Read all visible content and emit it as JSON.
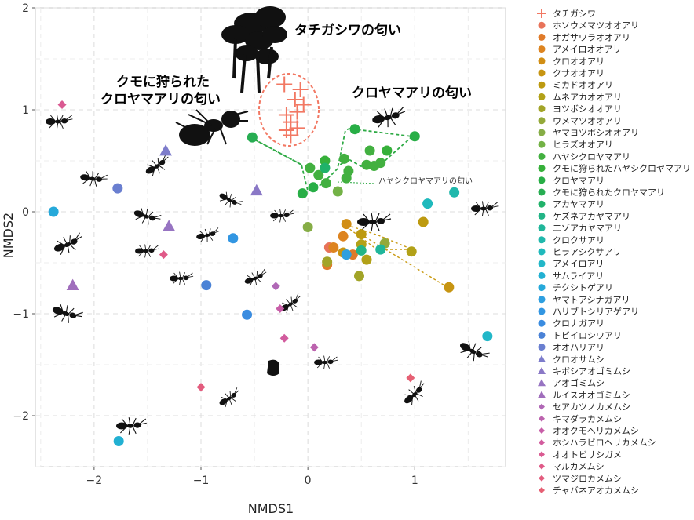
{
  "chart_data": {
    "type": "scatter",
    "xlabel": "NMDS1",
    "ylabel": "NMDS2",
    "xlim": [
      -2.55,
      1.85
    ],
    "ylim": [
      -2.5,
      2.0
    ],
    "xticks": [
      -2,
      -1,
      0,
      1
    ],
    "yticks": [
      -2,
      -1,
      0,
      1,
      2
    ],
    "grid": true,
    "legend_position": "right",
    "annotations": [
      {
        "text": "タチガシワの匂い"
      },
      {
        "text": "クモに狩られた"
      },
      {
        "text": "クロヤマアリの匂い"
      },
      {
        "text": "クロヤマアリの匂い"
      },
      {
        "text": "ハヤシクロヤマアリの匂い"
      }
    ],
    "series": [
      {
        "name": "タチガシワ",
        "color": "#F27863",
        "marker": "plus",
        "points": [
          [
            -0.22,
            1.25
          ],
          [
            -0.07,
            1.2
          ],
          [
            -0.12,
            1.1
          ],
          [
            -0.04,
            1.05
          ],
          [
            -0.1,
            0.98
          ],
          [
            -0.2,
            0.95
          ],
          [
            -0.16,
            0.88
          ],
          [
            -0.1,
            0.82
          ],
          [
            -0.2,
            0.8
          ],
          [
            -0.16,
            0.75
          ]
        ]
      },
      {
        "name": "ホソウメマツオオアリ",
        "color": "#E8735A",
        "marker": "circle",
        "points": [
          [
            0.2,
            -0.35
          ]
        ]
      },
      {
        "name": "オガサワラオオアリ",
        "color": "#E07B2A",
        "marker": "circle",
        "points": [
          [
            0.18,
            -0.52
          ],
          [
            0.42,
            -0.42
          ]
        ]
      },
      {
        "name": "アメイロオオアリ",
        "color": "#DD8420",
        "marker": "circle",
        "points": [
          [
            0.24,
            -0.35
          ],
          [
            0.33,
            -0.24
          ]
        ]
      },
      {
        "name": "クロオオアリ",
        "color": "#D18E14",
        "marker": "circle",
        "points": [
          [
            0.36,
            -0.12
          ]
        ]
      },
      {
        "name": "クサオオアリ",
        "color": "#C79512",
        "marker": "circle",
        "points": [
          [
            0.33,
            -0.4
          ],
          [
            1.32,
            -0.74
          ]
        ]
      },
      {
        "name": "ミカドオオアリ",
        "color": "#BD9A10",
        "marker": "circle",
        "points": [
          [
            0.5,
            -0.22
          ],
          [
            1.08,
            -0.1
          ]
        ]
      },
      {
        "name": "ムネアカオオアリ",
        "color": "#B2A118",
        "marker": "circle",
        "points": [
          [
            0.5,
            -0.32
          ],
          [
            0.97,
            -0.39
          ],
          [
            0.55,
            -0.47
          ]
        ]
      },
      {
        "name": "ヨツボシオオアリ",
        "color": "#A2A428",
        "marker": "circle",
        "points": [
          [
            0.18,
            -0.49
          ],
          [
            0.48,
            -0.63
          ]
        ]
      },
      {
        "name": "ウメマツオオアリ",
        "color": "#94A93A",
        "marker": "circle",
        "points": [
          [
            0.72,
            -0.31
          ]
        ]
      },
      {
        "name": "ヤマヨツボシオオアリ",
        "color": "#86AD46",
        "marker": "circle",
        "points": [
          [
            0.0,
            -0.15
          ]
        ]
      },
      {
        "name": "ヒラズオオアリ",
        "color": "#73B246",
        "marker": "circle",
        "points": [
          [
            0.28,
            0.2
          ]
        ]
      },
      {
        "name": "ハヤシクロヤマアリ",
        "color": "#42B040",
        "marker": "circle",
        "points": [
          [
            0.02,
            0.43
          ],
          [
            0.1,
            0.36
          ],
          [
            0.17,
            0.28
          ],
          [
            0.34,
            0.52
          ],
          [
            0.38,
            0.4
          ],
          [
            0.36,
            0.33
          ],
          [
            0.55,
            0.46
          ],
          [
            0.58,
            0.6
          ],
          [
            0.62,
            0.45
          ],
          [
            0.68,
            0.48
          ]
        ]
      },
      {
        "name": "クモに狩られたハヤシクロヤマアリ",
        "color": "#36B03A",
        "marker": "circle",
        "points": [
          [
            0.16,
            0.5
          ],
          [
            0.74,
            0.6
          ]
        ]
      },
      {
        "name": "クロヤマアリ",
        "color": "#28AE46",
        "marker": "circle",
        "points": [
          [
            0.44,
            0.81
          ],
          [
            1.0,
            0.74
          ],
          [
            0.05,
            0.24
          ],
          [
            -0.05,
            0.18
          ]
        ]
      },
      {
        "name": "クモに狩られたクロヤマアリ",
        "color": "#27AD52",
        "marker": "circle",
        "points": [
          [
            -0.52,
            0.73
          ]
        ]
      },
      {
        "name": "アカヤマアリ",
        "color": "#20B26A",
        "marker": "circle",
        "points": [
          [
            0.16,
            0.43
          ]
        ]
      },
      {
        "name": "ケズネアカヤマアリ",
        "color": "#22B486",
        "marker": "circle",
        "points": [
          [
            0.5,
            -0.38
          ]
        ]
      },
      {
        "name": "エゾアカヤマアリ",
        "color": "#20B69A",
        "marker": "circle",
        "points": [
          [
            0.68,
            -0.37
          ]
        ]
      },
      {
        "name": "クロクサアリ",
        "color": "#20B8AC",
        "marker": "circle",
        "points": [
          [
            1.37,
            0.19
          ]
        ]
      },
      {
        "name": "ヒラアシクサアリ",
        "color": "#1FB9BC",
        "marker": "circle",
        "points": [
          [
            1.12,
            0.08
          ]
        ]
      },
      {
        "name": "アメイロアリ",
        "color": "#22B7C8",
        "marker": "circle",
        "points": [
          [
            1.68,
            -1.22
          ]
        ]
      },
      {
        "name": "サムライアリ",
        "color": "#22B0D2",
        "marker": "circle",
        "points": [
          [
            -1.77,
            -2.25
          ]
        ]
      },
      {
        "name": "チクシトゲアリ",
        "color": "#26A9DA",
        "marker": "circle",
        "points": [
          [
            -2.38,
            0.0
          ]
        ]
      },
      {
        "name": "ヤマトアシナガアリ",
        "color": "#2E9FE0",
        "marker": "circle",
        "points": [
          [
            0.36,
            -0.42
          ]
        ]
      },
      {
        "name": "ハリブトシリアゲアリ",
        "color": "#3296E2",
        "marker": "circle",
        "points": [
          [
            -0.7,
            -0.26
          ]
        ]
      },
      {
        "name": "クロナガアリ",
        "color": "#3A8CE0",
        "marker": "circle",
        "points": [
          [
            -0.57,
            -1.01
          ]
        ]
      },
      {
        "name": "トビイロシワアリ",
        "color": "#4A82D6",
        "marker": "circle",
        "points": [
          [
            -0.95,
            -0.72
          ]
        ]
      },
      {
        "name": "オオハリアリ",
        "color": "#6A7FD0",
        "marker": "circle",
        "points": [
          [
            -1.78,
            0.23
          ]
        ]
      },
      {
        "name": "クロオサムシ",
        "color": "#7D7CCB",
        "marker": "triangle",
        "points": [
          [
            -1.33,
            0.6
          ]
        ]
      },
      {
        "name": "キボシアオゴミムシ",
        "color": "#8A78C6",
        "marker": "triangle",
        "points": [
          [
            -0.48,
            0.21
          ]
        ]
      },
      {
        "name": "アオゴミムシ",
        "color": "#9774C2",
        "marker": "triangle",
        "points": [
          [
            -1.3,
            -0.14
          ]
        ]
      },
      {
        "name": "ルイスオオゴミムシ",
        "color": "#A06EBC",
        "marker": "triangle",
        "points": [
          [
            -2.2,
            -0.72
          ]
        ]
      },
      {
        "name": "セアカツノカメムシ",
        "color": "#B068B6",
        "marker": "diamond",
        "points": [
          [
            -0.3,
            -0.73
          ]
        ]
      },
      {
        "name": "キマダラカメムシ",
        "color": "#BC63AE",
        "marker": "diamond",
        "points": [
          [
            0.06,
            -1.33
          ]
        ]
      },
      {
        "name": "オオクモヘリカメムシ",
        "color": "#C85EA8",
        "marker": "diamond",
        "points": [
          [
            -0.26,
            -0.95
          ]
        ]
      },
      {
        "name": "ホシハラビロヘリカメムシ",
        "color": "#D25C9E",
        "marker": "diamond",
        "points": [
          [
            -0.22,
            -1.24
          ]
        ]
      },
      {
        "name": "オオトビサシガメ",
        "color": "#DA5A92",
        "marker": "diamond",
        "points": [
          [
            -2.3,
            1.05
          ]
        ]
      },
      {
        "name": "マルカメムシ",
        "color": "#E05A88",
        "marker": "diamond",
        "points": [
          [
            -1.35,
            -0.42
          ]
        ]
      },
      {
        "name": "ツマジロカメムシ",
        "color": "#E35C7E",
        "marker": "diamond",
        "points": [
          [
            -1.0,
            -1.72
          ]
        ]
      },
      {
        "name": "チャバネアオカメムシ",
        "color": "#E66074",
        "marker": "diamond",
        "points": [
          [
            0.96,
            -1.63
          ]
        ]
      }
    ]
  }
}
